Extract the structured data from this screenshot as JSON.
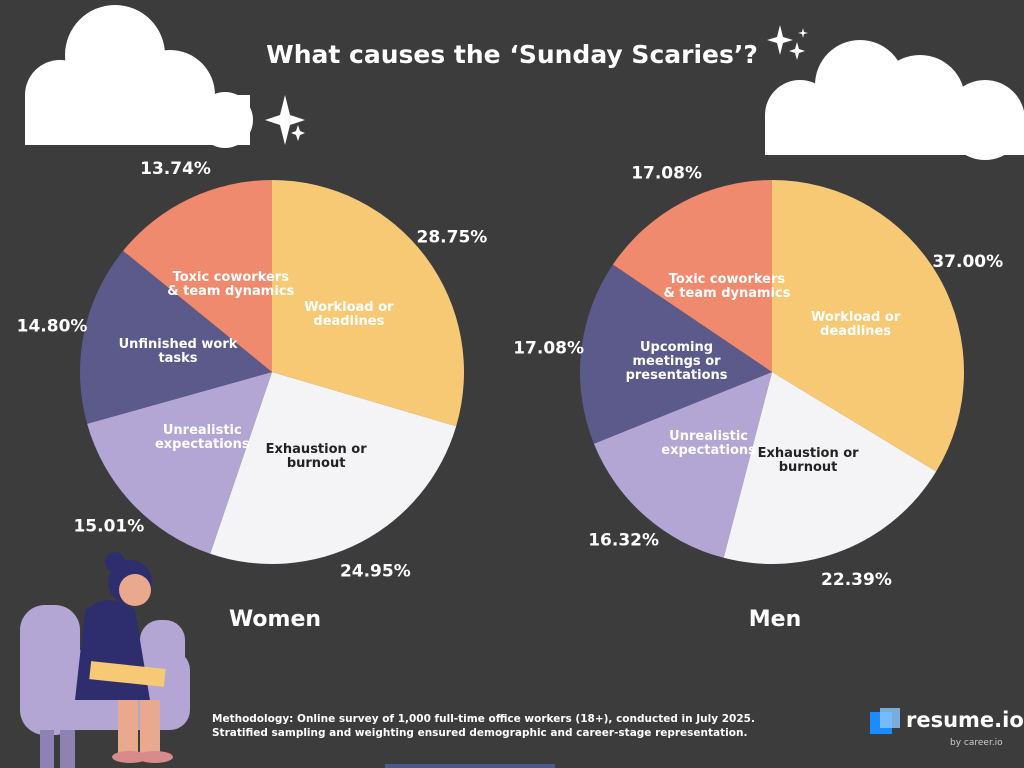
{
  "title": "What causes the ‘Sunday Scaries’?",
  "chart_data": [
    {
      "type": "pie",
      "title": "Women",
      "categories": [
        "Workload or deadlines",
        "Exhaustion or burnout",
        "Unrealistic expectations",
        "Unfinished work tasks",
        "Toxic coworkers & team dynamics"
      ],
      "values": [
        28.75,
        24.95,
        15.01,
        14.8,
        13.74
      ],
      "value_labels": [
        "28.75%",
        "24.95%",
        "15.01%",
        "14.80%",
        "13.74%"
      ],
      "colors": [
        "#f8c974",
        "#f4f4f6",
        "#b3a6d4",
        "#5b5a8b",
        "#f08a6e"
      ]
    },
    {
      "type": "pie",
      "title": "Men",
      "categories": [
        "Workload or deadlines",
        "Exhaustion or burnout",
        "Unrealistic expectations",
        "Upcoming meetings or presentations",
        "Toxic coworkers & team dynamics"
      ],
      "values": [
        37.0,
        22.39,
        16.32,
        17.08,
        17.08
      ],
      "value_labels": [
        "37.00%",
        "22.39%",
        "16.32%",
        "17.08%",
        "17.08%"
      ],
      "colors": [
        "#f8c974",
        "#f4f4f6",
        "#b3a6d4",
        "#5b5a8b",
        "#f08a6e"
      ]
    }
  ],
  "footer": {
    "methodology": "Methodology: Online survey of 1,000 full-time office workers (18+), conducted in July 2025. Stratified sampling and weighting ensured demographic and career-stage representation.",
    "brand": "resume.io",
    "brand_sub": "by career.io"
  }
}
